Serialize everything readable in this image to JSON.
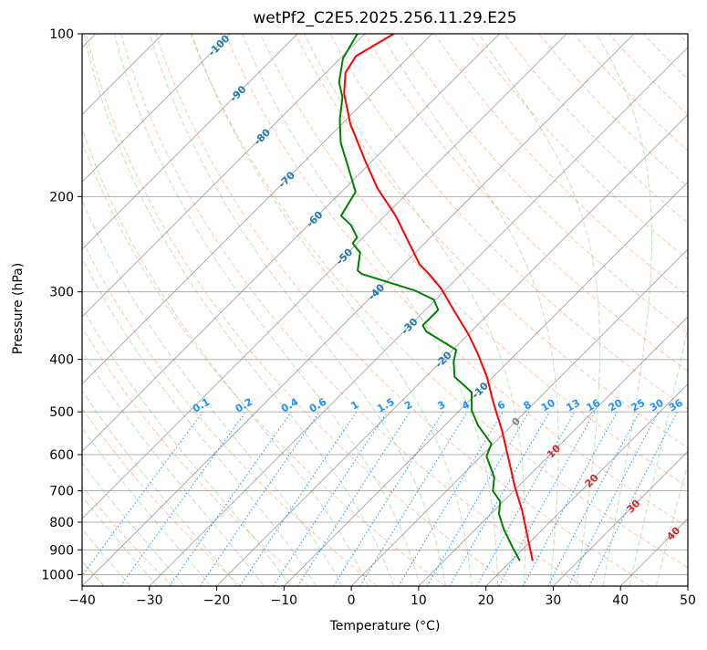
{
  "chart_data": {
    "type": "line",
    "subtype": "skew-t log-p",
    "title": "wetPf2_C2E5.2025.256.11.29.E25",
    "xlabel": "Temperature (°C)",
    "ylabel": "Pressure (hPa)",
    "xlim": [
      -40,
      50
    ],
    "ylim": [
      1050,
      100
    ],
    "x_ticks": [
      -40,
      -30,
      -20,
      -10,
      0,
      10,
      20,
      30,
      40,
      50
    ],
    "y_ticks": [
      100,
      200,
      300,
      400,
      500,
      600,
      700,
      800,
      900,
      1000
    ],
    "grid": true,
    "series": [
      {
        "name": "Temperature",
        "color": "#ff0000",
        "pressure": [
          943,
          834,
          762,
          687,
          620,
          544,
          478,
          431,
          389,
          360,
          324,
          296,
          278,
          267,
          217,
          193,
          172,
          147,
          129,
          118,
          110,
          100
        ],
        "temperature": [
          23.2,
          18.0,
          14.2,
          9.5,
          5.1,
          -0.5,
          -6.4,
          -10.9,
          -15.9,
          -19.9,
          -25.8,
          -30.8,
          -34.8,
          -37.6,
          -48.4,
          -55.2,
          -61.0,
          -68.7,
          -74.2,
          -77.1,
          -78.0,
          -75.7
        ]
      },
      {
        "name": "Dewpoint",
        "color": "#008000",
        "pressure": [
          943,
          890,
          824,
          772,
          733,
          700,
          661,
          604,
          573,
          530,
          497,
          460,
          431,
          404,
          384,
          355,
          346,
          324,
          310,
          298,
          278,
          274,
          254,
          244,
          238,
          226,
          217,
          196,
          174,
          159,
          144,
          131,
          123,
          111,
          100
        ],
        "temperature": [
          21.3,
          18.2,
          14.2,
          11.2,
          9.6,
          6.9,
          5.1,
          0.8,
          -0.3,
          -5.0,
          -8.2,
          -10.9,
          -15.7,
          -18.1,
          -19.5,
          -26.7,
          -28.1,
          -28.1,
          -30.3,
          -34.6,
          -44.8,
          -45.9,
          -48.2,
          -50.7,
          -50.9,
          -53.6,
          -56.5,
          -57.9,
          -63.3,
          -67.4,
          -71.0,
          -73.9,
          -76.6,
          -79.6,
          -81.1
        ]
      }
    ],
    "isotherm_labels": [
      {
        "t": -100,
        "text": "-100",
        "p": 105,
        "color": "#1f77b4"
      },
      {
        "t": -90,
        "text": "-90",
        "p": 129,
        "color": "#1f77b4"
      },
      {
        "t": -80,
        "text": "-80",
        "p": 155,
        "color": "#1f77b4"
      },
      {
        "t": -70,
        "text": "-70",
        "p": 186,
        "color": "#1f77b4"
      },
      {
        "t": -60,
        "text": "-60",
        "p": 220,
        "color": "#1f77b4"
      },
      {
        "t": -50,
        "text": "-50",
        "p": 258,
        "color": "#1f77b4"
      },
      {
        "t": -40,
        "text": "-40",
        "p": 300,
        "color": "#1f77b4"
      },
      {
        "t": -30,
        "text": "-30",
        "p": 347,
        "color": "#1f77b4"
      },
      {
        "t": -20,
        "text": "-20",
        "p": 400,
        "color": "#1f77b4"
      },
      {
        "t": -10,
        "text": "-10",
        "p": 456,
        "color": "#1f77b4"
      },
      {
        "t": 0,
        "text": "0",
        "p": 521,
        "color": "#808080"
      },
      {
        "t": 10,
        "text": "10",
        "p": 591,
        "color": "#d62728"
      },
      {
        "t": 20,
        "text": "20",
        "p": 670,
        "color": "#d62728"
      },
      {
        "t": 30,
        "text": "30",
        "p": 747,
        "color": "#d62728"
      },
      {
        "t": 40,
        "text": "40",
        "p": 839,
        "color": "#d62728"
      }
    ],
    "mixing_ratio_lines_gkg": [
      0.1,
      0.2,
      0.4,
      0.6,
      1,
      1.5,
      2,
      3,
      4,
      6,
      8,
      10,
      13,
      16,
      20,
      25,
      30,
      36
    ],
    "mixing_ratio_labels": [
      "0.1",
      "0.2",
      "0.4",
      "0.6",
      "1",
      "1.5",
      "2",
      "3",
      "4",
      "6",
      "8",
      "10",
      "13",
      "16",
      "20",
      "25",
      "30",
      "36"
    ],
    "mixing_ratio_top_hpa": 500,
    "colors": {
      "isotherm": "#808080",
      "dry_adiabat": "#ff7f50",
      "moist_adiabat": "#2ca02c",
      "mixing_ratio": "#1e90ff"
    }
  }
}
